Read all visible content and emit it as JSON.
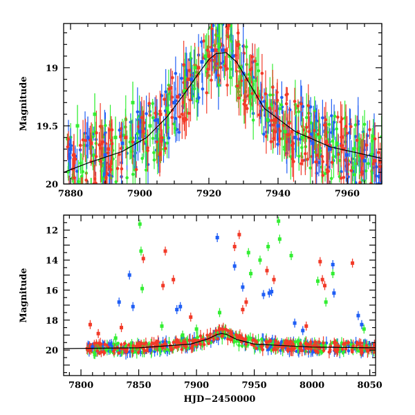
{
  "chart_data": [
    {
      "type": "scatter",
      "title": "",
      "xlabel": "",
      "ylabel": "Magnitude",
      "xlim": [
        7878,
        7970
      ],
      "ylim": [
        20.0,
        18.62
      ],
      "y_inverted": true,
      "xticks": [
        7880,
        7900,
        7920,
        7940,
        7960
      ],
      "yticks": [
        19,
        19.5,
        20
      ],
      "ytick_labels": [
        "19",
        "19.5",
        "20"
      ],
      "grid": false,
      "legend": "none",
      "model_curve": {
        "color": "#000000",
        "x": [
          7878,
          7885,
          7895,
          7902,
          7908,
          7913,
          7917,
          7920,
          7922,
          7925,
          7928,
          7932,
          7936,
          7945,
          7955,
          7970
        ],
        "y": [
          19.9,
          19.82,
          19.72,
          19.6,
          19.42,
          19.22,
          19.05,
          18.93,
          18.88,
          18.87,
          18.95,
          19.15,
          19.35,
          19.55,
          19.68,
          19.78
        ]
      },
      "series": [
        {
          "color": "#1f5ef5",
          "x": [
            7880,
            7885,
            7890,
            7895,
            7900,
            7905,
            7910,
            7915,
            7918,
            7921,
            7924,
            7927,
            7930,
            7935,
            7940,
            7945,
            7950,
            7955,
            7960,
            7965
          ],
          "y": [
            19.7,
            19.6,
            19.75,
            19.65,
            19.55,
            19.45,
            19.3,
            19.1,
            18.95,
            18.85,
            18.85,
            18.9,
            19.05,
            19.3,
            19.5,
            19.6,
            19.65,
            19.7,
            19.75,
            19.8
          ]
        },
        {
          "color": "#33ee33",
          "x": [
            7882,
            7887,
            7893,
            7898,
            7903,
            7908,
            7913,
            7916,
            7919,
            7923,
            7926,
            7929,
            7932,
            7937,
            7942,
            7947,
            7952,
            7957,
            7962,
            7967
          ],
          "y": [
            19.5,
            19.4,
            19.6,
            19.3,
            19.5,
            19.35,
            19.2,
            19.0,
            18.9,
            18.8,
            18.9,
            19.0,
            19.25,
            19.45,
            19.55,
            19.6,
            19.6,
            19.65,
            19.7,
            19.75
          ]
        },
        {
          "color": "#f23a28",
          "x": [
            7881,
            7886,
            7891,
            7896,
            7901,
            7906,
            7911,
            7914,
            7917,
            7920,
            7922,
            7925,
            7928,
            7931,
            7934,
            7939,
            7944,
            7949,
            7954,
            7959,
            7964,
            7968
          ],
          "y": [
            19.75,
            19.65,
            19.7,
            19.6,
            19.55,
            19.4,
            19.25,
            19.1,
            19.0,
            18.9,
            18.85,
            18.85,
            18.95,
            19.1,
            19.25,
            19.45,
            19.55,
            19.6,
            19.65,
            19.7,
            19.75,
            19.8
          ]
        }
      ]
    },
    {
      "type": "scatter",
      "title": "",
      "xlabel": "HJD−2450000",
      "ylabel": "Magnitude",
      "xlim": [
        7785,
        8055
      ],
      "ylim": [
        21.7,
        11.0
      ],
      "y_inverted": true,
      "xticks": [
        7800,
        7850,
        7900,
        7950,
        8000,
        8050
      ],
      "yticks": [
        12,
        14,
        16,
        18,
        20
      ],
      "ytick_labels": [
        "12",
        "14",
        "16",
        "18",
        "20"
      ],
      "grid": false,
      "legend": "none",
      "model_curve": {
        "color": "#000000",
        "x": [
          7785,
          7850,
          7895,
          7910,
          7918,
          7922,
          7926,
          7935,
          7950,
          8000,
          8055
        ],
        "y": [
          19.9,
          19.85,
          19.6,
          19.25,
          18.95,
          18.9,
          18.95,
          19.3,
          19.6,
          19.8,
          19.85
        ]
      },
      "series": [
        {
          "color": "#1f5ef5",
          "x": [
            7810,
            7825,
            7833,
            7842,
            7845,
            7860,
            7883,
            7886,
            7918,
            7933,
            7940,
            7958,
            7963,
            7965,
            7985,
            7992,
            8018,
            8019,
            8040,
            8043
          ],
          "y": [
            19.8,
            19.6,
            16.8,
            15.0,
            17.1,
            20.0,
            17.3,
            17.1,
            12.5,
            14.4,
            15.8,
            16.3,
            16.2,
            16.1,
            18.2,
            18.7,
            14.3,
            16.2,
            17.7,
            18.3
          ]
        },
        {
          "color": "#33ee33",
          "x": [
            7812,
            7830,
            7851,
            7852,
            7853,
            7870,
            7888,
            7900,
            7920,
            7945,
            7947,
            7955,
            7962,
            7971,
            7972,
            7982,
            8005,
            8012,
            8018,
            8045
          ],
          "y": [
            20.3,
            19.2,
            11.6,
            13.4,
            15.9,
            18.4,
            19.0,
            18.6,
            17.5,
            13.5,
            14.9,
            14.0,
            13.1,
            11.4,
            12.6,
            13.7,
            15.4,
            16.8,
            14.9,
            18.6
          ]
        },
        {
          "color": "#f23a28",
          "x": [
            7808,
            7815,
            7835,
            7854,
            7871,
            7873,
            7880,
            7895,
            7920,
            7933,
            7937,
            7940,
            7943,
            7961,
            7967,
            7995,
            8007,
            8009,
            8011,
            8035
          ],
          "y": [
            18.3,
            18.9,
            18.5,
            13.9,
            15.7,
            13.4,
            15.3,
            17.8,
            18.6,
            13.1,
            12.3,
            17.3,
            16.8,
            14.7,
            15.3,
            18.4,
            14.1,
            15.3,
            15.7,
            14.2
          ]
        }
      ]
    }
  ]
}
